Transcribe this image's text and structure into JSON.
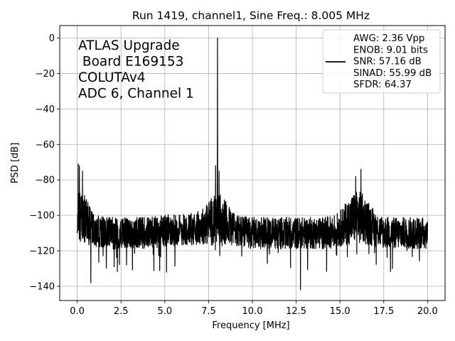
{
  "chart_data": {
    "type": "line",
    "title": "Run 1419, channel1, Sine Freq.: 8.005 MHz",
    "xlabel": "Frequency [MHz]",
    "ylabel": "PSD [dB]",
    "xlim": [
      -1.0,
      21.0
    ],
    "ylim": [
      -148,
      7
    ],
    "xticks": [
      0.0,
      2.5,
      5.0,
      7.5,
      10.0,
      12.5,
      15.0,
      17.5,
      20.0
    ],
    "xtick_labels": [
      "0.0",
      "2.5",
      "5.0",
      "7.5",
      "10.0",
      "12.5",
      "15.0",
      "17.5",
      "20.0"
    ],
    "yticks": [
      0,
      -20,
      -40,
      -60,
      -80,
      -100,
      -120,
      -140
    ],
    "ytick_labels": [
      "0",
      "−20",
      "−40",
      "−60",
      "−80",
      "−100",
      "−120",
      "−140"
    ],
    "grid": true,
    "legend_position": "top-right",
    "annotation_lines": [
      "ATLAS Upgrade",
      " Board E169153",
      "COLUTAv4",
      "ADC 6, Channel 1"
    ],
    "legend_lines": [
      "AWG: 2.36 Vpp",
      "ENOB: 9.01 bits",
      "SNR: 57.16 dB",
      "SINAD: 55.99 dB",
      "SFDR: 64.37"
    ],
    "line_color": "#000000",
    "series": [
      {
        "x_start": 0.0,
        "x_end": 20.0,
        "peak_x": 8.005,
        "peak_y": 0,
        "noise_floor_db": -110,
        "noise_min_db": -142,
        "noise_max_db": -71
      }
    ]
  }
}
